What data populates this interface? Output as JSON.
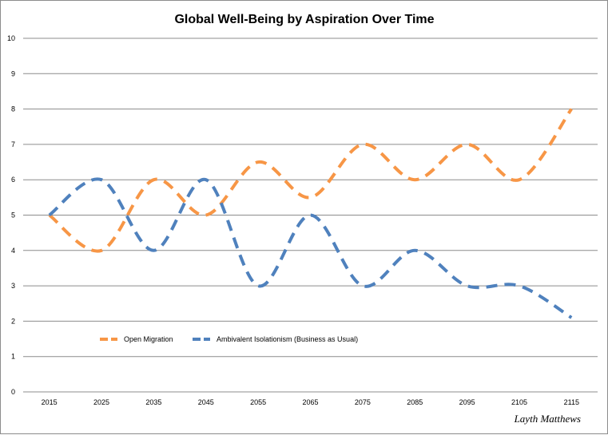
{
  "chart_data": {
    "type": "line",
    "title": "Global Well-Being by Aspiration Over Time",
    "xlabel": "",
    "ylabel": "",
    "categories": [
      "2015",
      "2025",
      "2035",
      "2045",
      "2055",
      "2065",
      "2075",
      "2085",
      "2095",
      "2105",
      "2115"
    ],
    "yticks": [
      "0",
      "1",
      "2",
      "3",
      "4",
      "5",
      "6",
      "7",
      "8",
      "9",
      "10"
    ],
    "ylim": [
      0,
      10
    ],
    "grid": true,
    "legend_position": "bottom-left",
    "series": [
      {
        "name": "Open Migration",
        "color": "#F79646",
        "style": "dashed",
        "values": [
          5,
          4,
          6,
          5,
          6.5,
          5.5,
          7,
          6,
          7,
          6,
          8
        ]
      },
      {
        "name": "Ambivalent Isolationism (Business as Usual)",
        "color": "#4F81BD",
        "style": "dashed",
        "values": [
          5,
          6,
          4,
          6,
          3,
          5,
          3,
          4,
          3,
          3,
          2.1
        ]
      }
    ]
  },
  "credit": "Layth Matthews"
}
